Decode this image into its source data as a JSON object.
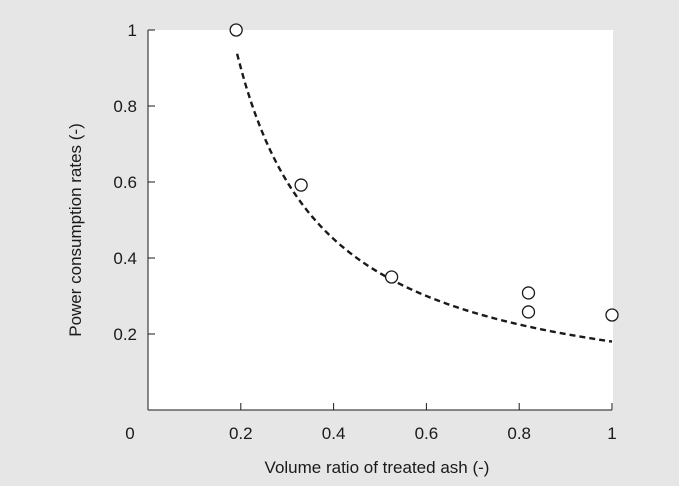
{
  "colors": {
    "background": "#e6e6e6",
    "plot_background": "#ffffff",
    "ink": "#1a1a1a"
  },
  "chart_data": {
    "type": "scatter",
    "title": "",
    "xlabel": "Volume ratio of treated ash (-)",
    "ylabel": "Power consumption rates (-)",
    "xlim": [
      0,
      1
    ],
    "ylim": [
      0,
      1
    ],
    "x_ticks": [
      0,
      0.2,
      0.4,
      0.6,
      0.8,
      1
    ],
    "x_tick_labels": [
      "0",
      "0.2",
      "0.4",
      "0.6",
      "0.8",
      "1"
    ],
    "y_ticks": [
      0.2,
      0.4,
      0.6,
      0.8,
      1
    ],
    "y_tick_labels": [
      "0.2",
      "0.4",
      "0.6",
      "0.8",
      "1"
    ],
    "grid": false,
    "legend": "none",
    "points": {
      "marker": "open-circle",
      "x": [
        0.19,
        0.33,
        0.525,
        0.82,
        0.82,
        1.0
      ],
      "y": [
        1.0,
        0.592,
        0.35,
        0.308,
        0.258,
        0.25
      ]
    },
    "fit_curve": {
      "style": "dashed",
      "model": "y = a / x",
      "a": 0.18,
      "x_range": [
        0.192,
        1.0
      ]
    }
  }
}
